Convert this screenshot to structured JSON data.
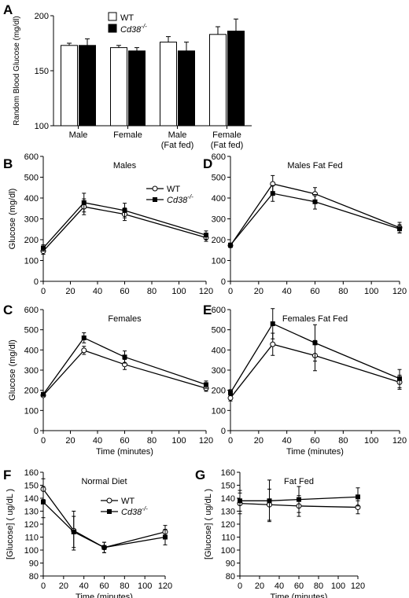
{
  "chart_data": [
    {
      "panel": "A",
      "type": "bar",
      "title": "",
      "ylabel": "Random Blood Glucose (mg/dl)",
      "ylim": [
        100,
        200
      ],
      "yticks": [
        100,
        150,
        200
      ],
      "categories": [
        [
          "Male"
        ],
        [
          "Female"
        ],
        [
          "Male",
          "(Fat fed)"
        ],
        [
          "Female",
          "(Fat fed)"
        ]
      ],
      "legend": [
        "WT",
        "Cd38-/-"
      ],
      "legend_position": "top-center",
      "series": [
        {
          "name": "WT",
          "fill": "#ffffff",
          "values": [
            173,
            171,
            176,
            183
          ],
          "err": [
            2,
            2,
            5,
            7
          ]
        },
        {
          "name": "Cd38-/-",
          "fill": "#000000",
          "values": [
            173,
            168,
            168,
            186
          ],
          "err": [
            6,
            3,
            8,
            11
          ]
        }
      ]
    },
    {
      "panel": "B",
      "type": "line",
      "title": "Males",
      "ylabel": "Glucose (mg/dl)",
      "xlabel": "",
      "x": [
        0,
        30,
        60,
        120
      ],
      "xlim": [
        0,
        120
      ],
      "xticks": [
        0,
        20,
        40,
        60,
        80,
        100,
        120
      ],
      "ylim": [
        0,
        600
      ],
      "yticks": [
        0,
        100,
        200,
        300,
        400,
        500,
        600
      ],
      "legend": [
        "WT",
        "Cd38-/-"
      ],
      "legend_position": "top-right",
      "series": [
        {
          "name": "WT",
          "marker": "open-circle",
          "values": [
            145,
            358,
            322,
            210
          ],
          "err": [
            15,
            38,
            30,
            18
          ]
        },
        {
          "name": "Cd38-/-",
          "marker": "filled-square",
          "values": [
            160,
            378,
            340,
            222
          ],
          "err": [
            15,
            45,
            35,
            20
          ]
        }
      ]
    },
    {
      "panel": "D",
      "type": "line",
      "title": "Males Fat Fed",
      "ylabel": "",
      "xlabel": "",
      "x": [
        0,
        30,
        60,
        120
      ],
      "xlim": [
        0,
        120
      ],
      "xticks": [
        0,
        20,
        40,
        60,
        80,
        100,
        120
      ],
      "ylim": [
        0,
        600
      ],
      "yticks": [
        0,
        100,
        200,
        300,
        400,
        500,
        600
      ],
      "series": [
        {
          "name": "WT",
          "marker": "open-circle",
          "values": [
            172,
            468,
            420,
            258
          ],
          "err": [
            10,
            40,
            30,
            25
          ]
        },
        {
          "name": "Cd38-/-",
          "marker": "filled-square",
          "values": [
            174,
            422,
            382,
            252
          ],
          "err": [
            10,
            38,
            35,
            20
          ]
        }
      ]
    },
    {
      "panel": "C",
      "type": "line",
      "title": "Females",
      "ylabel": "Glucose (mg/dl)",
      "xlabel": "Time (minutes)",
      "x": [
        0,
        30,
        60,
        120
      ],
      "xlim": [
        0,
        120
      ],
      "xticks": [
        0,
        20,
        40,
        60,
        80,
        100,
        120
      ],
      "ylim": [
        0,
        600
      ],
      "yticks": [
        0,
        100,
        200,
        300,
        400,
        500,
        600
      ],
      "series": [
        {
          "name": "WT",
          "marker": "open-circle",
          "values": [
            175,
            398,
            328,
            210
          ],
          "err": [
            8,
            20,
            25,
            15
          ]
        },
        {
          "name": "Cd38-/-",
          "marker": "filled-square",
          "values": [
            180,
            460,
            365,
            228
          ],
          "err": [
            8,
            25,
            30,
            18
          ]
        }
      ]
    },
    {
      "panel": "E",
      "type": "line",
      "title": "Females Fat Fed",
      "ylabel": "",
      "xlabel": "Time (minutes)",
      "x": [
        0,
        30,
        60,
        120
      ],
      "xlim": [
        0,
        120
      ],
      "xticks": [
        0,
        20,
        40,
        60,
        80,
        100,
        120
      ],
      "ylim": [
        0,
        600
      ],
      "yticks": [
        0,
        100,
        200,
        300,
        400,
        500,
        600
      ],
      "series": [
        {
          "name": "WT",
          "marker": "open-circle",
          "values": [
            162,
            428,
            372,
            240
          ],
          "err": [
            15,
            55,
            75,
            35
          ]
        },
        {
          "name": "Cd38-/-",
          "marker": "filled-square",
          "values": [
            188,
            530,
            435,
            258
          ],
          "err": [
            15,
            75,
            90,
            45
          ]
        }
      ]
    },
    {
      "panel": "F",
      "type": "line",
      "title": "Normal Diet",
      "ylabel": "[Glucose] ( ug/dL )",
      "xlabel": "Time (minutes)",
      "x": [
        0,
        30,
        60,
        120
      ],
      "xlim": [
        0,
        120
      ],
      "xticks": [
        0,
        20,
        40,
        60,
        80,
        100,
        120
      ],
      "ylim": [
        80,
        160
      ],
      "yticks": [
        80,
        90,
        100,
        110,
        120,
        130,
        140,
        150,
        160
      ],
      "legend": [
        "WT",
        "Cd38-/-"
      ],
      "legend_position": "top-right",
      "series": [
        {
          "name": "WT",
          "marker": "open-circle",
          "values": [
            147,
            115,
            102,
            114
          ],
          "err": [
            8,
            15,
            4,
            5
          ]
        },
        {
          "name": "Cd38-/-",
          "marker": "filled-square",
          "values": [
            137,
            114,
            102,
            110
          ],
          "err": [
            12,
            12,
            4,
            6
          ]
        }
      ]
    },
    {
      "panel": "G",
      "type": "line",
      "title": "Fat Fed",
      "ylabel": "[Glucose] ( ug/dL )",
      "xlabel": "Time (minutes)",
      "x": [
        0,
        30,
        60,
        120
      ],
      "xlim": [
        0,
        120
      ],
      "xticks": [
        0,
        20,
        40,
        60,
        80,
        100,
        120
      ],
      "ylim": [
        80,
        160
      ],
      "yticks": [
        80,
        90,
        100,
        110,
        120,
        130,
        140,
        150,
        160
      ],
      "series": [
        {
          "name": "WT",
          "marker": "open-circle",
          "values": [
            136,
            135,
            134,
            133
          ],
          "err": [
            8,
            12,
            8,
            5
          ]
        },
        {
          "name": "Cd38-/-",
          "marker": "filled-square",
          "values": [
            138,
            138,
            139,
            141
          ],
          "err": [
            8,
            16,
            10,
            7
          ]
        }
      ]
    }
  ]
}
